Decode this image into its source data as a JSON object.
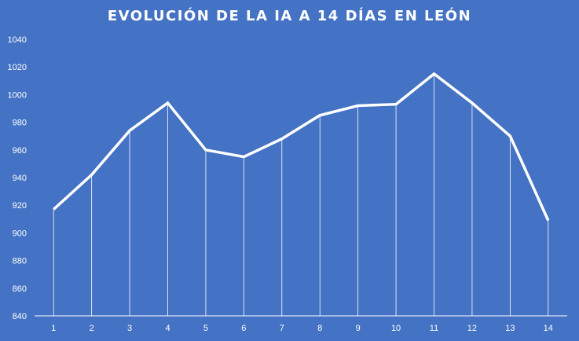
{
  "chart_data": {
    "type": "line",
    "title": "EVOLUCIÓN DE LA IA A 14 DÍAS EN LEÓN",
    "xlabel": "",
    "ylabel": "",
    "categories": [
      "1",
      "2",
      "3",
      "4",
      "5",
      "6",
      "7",
      "8",
      "9",
      "10",
      "11",
      "12",
      "13",
      "14"
    ],
    "series": [
      {
        "values": [
          917,
          942,
          974,
          994,
          960,
          955,
          968,
          985,
          992,
          993,
          1015,
          994,
          970,
          909
        ]
      }
    ],
    "ylim": [
      840,
      1040
    ],
    "yticks": [
      "840",
      "860",
      "880",
      "900",
      "920",
      "940",
      "960",
      "980",
      "1000",
      "1020",
      "1040"
    ],
    "drop_lines": true,
    "grid": false,
    "legend": "none",
    "colors": {
      "background": "#4472c4",
      "line": "#ffffff",
      "text": "#ffffff"
    }
  }
}
